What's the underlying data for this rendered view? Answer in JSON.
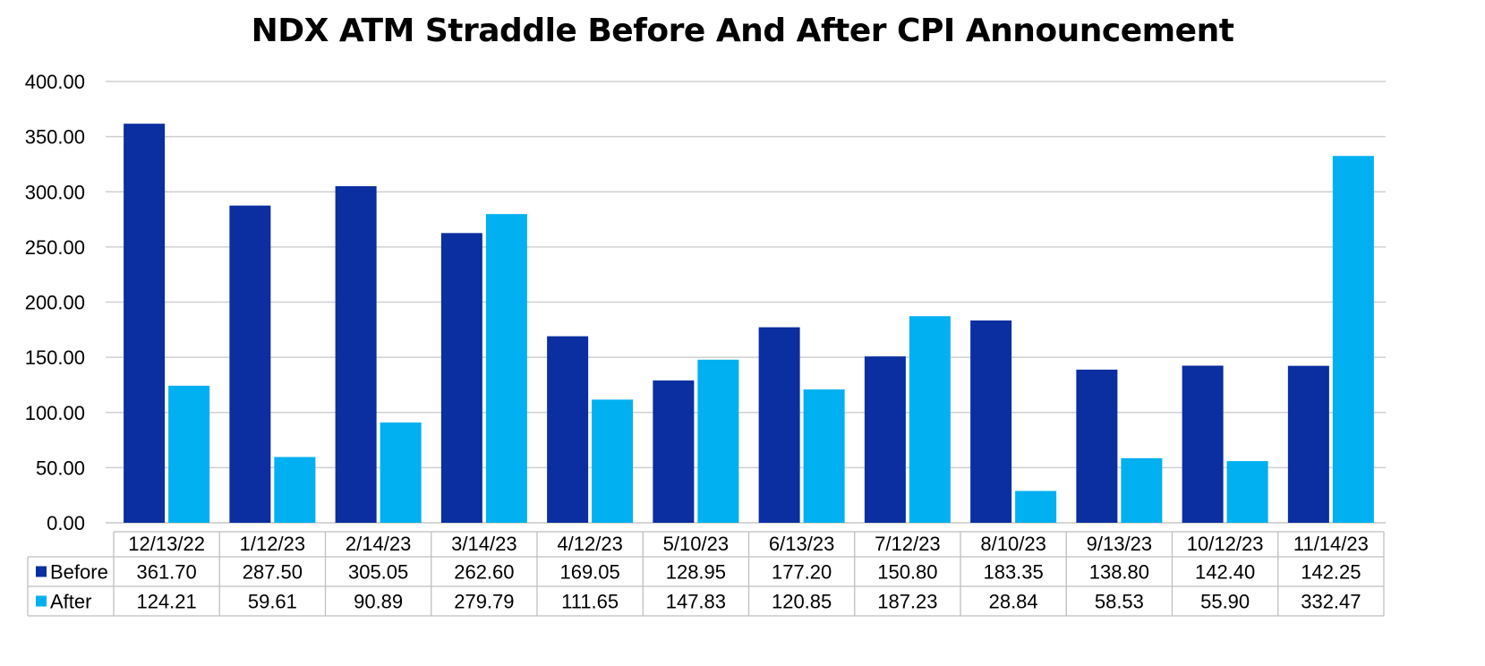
{
  "chart_data": {
    "type": "bar",
    "title": "NDX ATM Straddle Before And After CPI Announcement",
    "categories": [
      "12/13/22",
      "1/12/23",
      "2/14/23",
      "3/14/23",
      "4/12/23",
      "5/10/23",
      "6/13/23",
      "7/12/23",
      "8/10/23",
      "9/13/23",
      "10/12/23",
      "11/14/23"
    ],
    "series": [
      {
        "name": "Before",
        "color": "#0B2EA0",
        "values": [
          361.7,
          287.5,
          305.05,
          262.6,
          169.05,
          128.95,
          177.2,
          150.8,
          183.35,
          138.8,
          142.4,
          142.25
        ],
        "labels": [
          "361.70",
          "287.50",
          "305.05",
          "262.60",
          "169.05",
          "128.95",
          "177.20",
          "150.80",
          "183.35",
          "138.80",
          "142.40",
          "142.25"
        ]
      },
      {
        "name": "After",
        "color": "#00B0F0",
        "values": [
          124.21,
          59.61,
          90.89,
          279.79,
          111.65,
          147.83,
          120.85,
          187.23,
          28.84,
          58.53,
          55.9,
          332.47
        ],
        "labels": [
          "124.21",
          "59.61",
          "90.89",
          "279.79",
          "111.65",
          "147.83",
          "120.85",
          "187.23",
          "28.84",
          "58.53",
          "55.90",
          "332.47"
        ]
      }
    ],
    "yticks": [
      "0.00",
      "50.00",
      "100.00",
      "150.00",
      "200.00",
      "250.00",
      "300.00",
      "350.00",
      "400.00"
    ],
    "ylim": [
      0,
      400
    ],
    "grid": true,
    "legend": "data-table-left"
  }
}
